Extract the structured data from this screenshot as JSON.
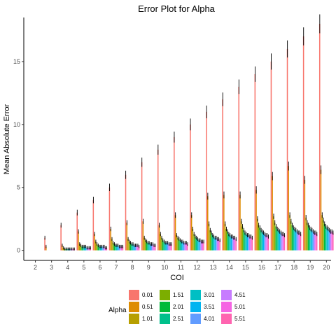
{
  "chart_data": {
    "type": "bar",
    "title": "Error Plot for Alpha",
    "xlabel": "COI",
    "ylabel": "Mean Absolute Error",
    "ylim": [
      -0.8,
      18.5
    ],
    "yticks": [
      0,
      5,
      10,
      15
    ],
    "grid": false,
    "legend_position": "bottom",
    "legend_title": "Alpha",
    "categories": [
      "2",
      "3",
      "4",
      "5",
      "6",
      "7",
      "8",
      "9",
      "10",
      "11",
      "12",
      "13",
      "14",
      "15",
      "16",
      "17",
      "18",
      "19",
      "20"
    ],
    "series": [
      {
        "name": "0.01",
        "color": "#F8766D",
        "values": [
          0,
          1,
          2,
          3,
          4,
          5,
          6,
          7,
          8,
          9,
          10,
          11,
          12,
          13,
          14,
          15,
          16,
          17,
          18
        ]
      },
      {
        "name": "0.51",
        "color": "#DE8C00",
        "values": [
          0,
          0.3,
          0.4,
          1.5,
          1.3,
          1.7,
          2.2,
          2.3,
          2.0,
          2.8,
          2.8,
          4.3,
          4.4,
          4.4,
          4.8,
          5.9,
          6.7,
          5.6,
          6.4
        ]
      },
      {
        "name": "1.01",
        "color": "#B79F00",
        "values": [
          0,
          0,
          0.2,
          0.5,
          0.7,
          0.9,
          0.9,
          1.0,
          1.3,
          1.2,
          1.7,
          2.1,
          2.1,
          2.3,
          2.5,
          2.7,
          2.8,
          2.6,
          2.8
        ]
      },
      {
        "name": "1.51",
        "color": "#7CAE00",
        "values": [
          0,
          0,
          0.1,
          0.4,
          0.5,
          0.6,
          0.7,
          0.8,
          1.0,
          1.0,
          1.3,
          1.6,
          1.7,
          1.9,
          2.0,
          2.2,
          2.3,
          2.2,
          2.4
        ]
      },
      {
        "name": "2.01",
        "color": "#00BA38",
        "values": [
          0,
          0,
          0.1,
          0.3,
          0.4,
          0.5,
          0.6,
          0.7,
          0.8,
          0.9,
          1.1,
          1.4,
          1.5,
          1.6,
          1.8,
          1.9,
          2.0,
          2.0,
          2.1
        ]
      },
      {
        "name": "2.51",
        "color": "#00C08B",
        "values": [
          0,
          0,
          0.1,
          0.3,
          0.3,
          0.4,
          0.5,
          0.6,
          0.7,
          0.8,
          1.0,
          1.2,
          1.3,
          1.4,
          1.6,
          1.7,
          1.8,
          1.8,
          1.9
        ]
      },
      {
        "name": "3.01",
        "color": "#00BFC4",
        "values": [
          0,
          0,
          0.1,
          0.3,
          0.3,
          0.4,
          0.5,
          0.6,
          0.6,
          0.7,
          0.9,
          1.1,
          1.2,
          1.3,
          1.5,
          1.6,
          1.7,
          1.7,
          1.8
        ]
      },
      {
        "name": "3.51",
        "color": "#00B4F0",
        "values": [
          0,
          0,
          0.1,
          0.3,
          0.3,
          0.4,
          0.4,
          0.5,
          0.6,
          0.7,
          0.8,
          1.0,
          1.1,
          1.2,
          1.4,
          1.5,
          1.6,
          1.6,
          1.7
        ]
      },
      {
        "name": "4.01",
        "color": "#619CFF",
        "values": [
          0,
          0,
          0.1,
          0.2,
          0.3,
          0.3,
          0.4,
          0.5,
          0.6,
          0.6,
          0.8,
          1.0,
          1.1,
          1.2,
          1.3,
          1.4,
          1.5,
          1.5,
          1.6
        ]
      },
      {
        "name": "4.51",
        "color": "#C77CFF",
        "values": [
          0,
          0,
          0.1,
          0.2,
          0.3,
          0.3,
          0.4,
          0.5,
          0.5,
          0.6,
          0.7,
          0.9,
          1.0,
          1.1,
          1.2,
          1.3,
          1.4,
          1.4,
          1.5
        ]
      },
      {
        "name": "5.01",
        "color": "#F564E3",
        "values": [
          0,
          0,
          0.1,
          0.2,
          0.2,
          0.3,
          0.4,
          0.4,
          0.5,
          0.6,
          0.7,
          0.9,
          1.0,
          1.1,
          1.2,
          1.3,
          1.4,
          1.4,
          1.5
        ]
      },
      {
        "name": "5.51",
        "color": "#FF64B0",
        "values": [
          0,
          0,
          0.1,
          0.2,
          0.2,
          0.3,
          0.3,
          0.4,
          0.5,
          0.5,
          0.7,
          0.8,
          0.9,
          1.0,
          1.1,
          1.2,
          1.3,
          1.3,
          1.4
        ]
      }
    ]
  }
}
